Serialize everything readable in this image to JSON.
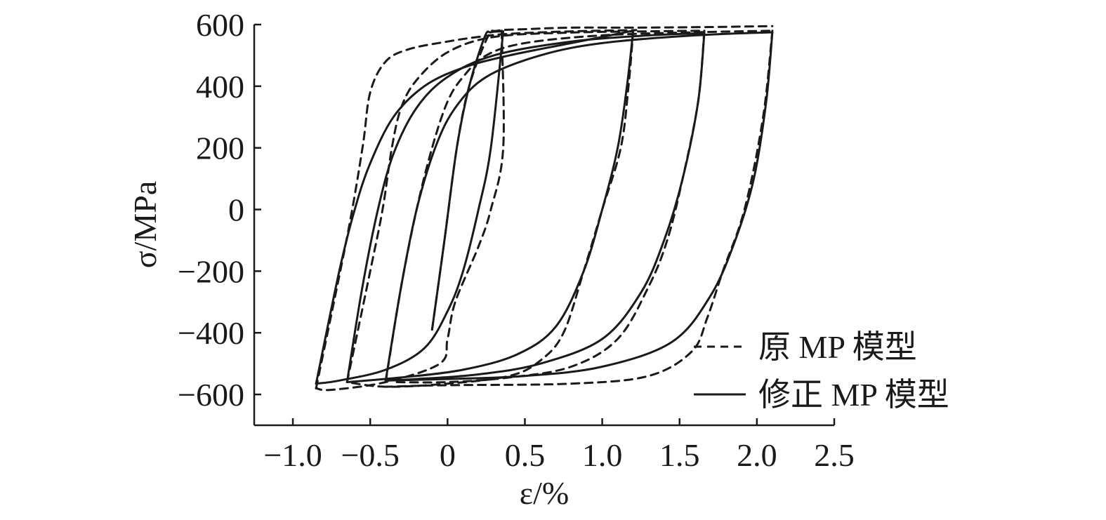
{
  "chart_data": {
    "type": "line",
    "xlabel": "ε/%",
    "ylabel": "σ/MPa",
    "xlim": [
      -1.25,
      2.5
    ],
    "ylim": [
      -700,
      600
    ],
    "xticks": [
      -1.0,
      -0.5,
      0,
      0.5,
      1.0,
      1.5,
      2.0,
      2.5
    ],
    "xtick_labels": [
      "−1.0",
      "−0.5",
      "0",
      "0.5",
      "1.0",
      "1.5",
      "2.0",
      "2.5"
    ],
    "yticks": [
      600,
      400,
      200,
      0,
      -200,
      -400,
      -600
    ],
    "ytick_labels": [
      "600",
      "400",
      "200",
      "0",
      "−200",
      "−400",
      "−600"
    ],
    "grid": false,
    "legend_position": "bottom-right",
    "series": [
      {
        "name": "原 MP 模型",
        "style": "dashed",
        "color": "#1a1a1a",
        "segments": [
          [
            [
              -0.1,
              -390
            ],
            [
              -0.02,
              -100
            ],
            [
              0.06,
              200
            ],
            [
              0.14,
              400
            ],
            [
              0.26,
              560
            ],
            [
              0.32,
              580
            ],
            [
              0.5,
              585
            ],
            [
              0.8,
              590
            ],
            [
              1.2,
              590
            ],
            [
              1.7,
              592
            ],
            [
              2.1,
              595
            ]
          ],
          [
            [
              0.35,
              580
            ],
            [
              0.36,
              200
            ],
            [
              0.28,
              0
            ],
            [
              0.2,
              -120
            ],
            [
              0.05,
              -300
            ],
            [
              0.0,
              -420
            ],
            [
              -0.05,
              -500
            ],
            [
              -0.4,
              -560
            ],
            [
              -0.75,
              -585
            ],
            [
              -0.85,
              -580
            ]
          ],
          [
            [
              -0.85,
              -580
            ],
            [
              -0.65,
              -90
            ],
            [
              -0.55,
              200
            ],
            [
              -0.5,
              380
            ],
            [
              -0.4,
              480
            ],
            [
              -0.25,
              520
            ],
            [
              0.0,
              545
            ],
            [
              0.2,
              560
            ],
            [
              0.4,
              570
            ],
            [
              0.8,
              578
            ],
            [
              1.22,
              582
            ]
          ],
          [
            [
              1.2,
              580
            ],
            [
              1.17,
              400
            ],
            [
              1.12,
              200
            ],
            [
              1.0,
              0
            ],
            [
              0.88,
              -200
            ],
            [
              0.75,
              -400
            ],
            [
              0.6,
              -490
            ],
            [
              0.4,
              -540
            ],
            [
              0.0,
              -565
            ],
            [
              -0.4,
              -575
            ],
            [
              -0.65,
              -560
            ]
          ],
          [
            [
              -0.65,
              -560
            ],
            [
              -0.5,
              -200
            ],
            [
              -0.42,
              0
            ],
            [
              -0.36,
              200
            ],
            [
              -0.3,
              330
            ],
            [
              -0.2,
              420
            ],
            [
              0.0,
              510
            ],
            [
              0.3,
              560
            ],
            [
              0.8,
              574
            ],
            [
              1.3,
              578
            ],
            [
              1.66,
              580
            ]
          ],
          [
            [
              1.66,
              580
            ],
            [
              1.62,
              350
            ],
            [
              1.52,
              100
            ],
            [
              1.42,
              -100
            ],
            [
              1.3,
              -250
            ],
            [
              1.1,
              -420
            ],
            [
              0.8,
              -510
            ],
            [
              0.4,
              -545
            ],
            [
              0.0,
              -560
            ],
            [
              -0.35,
              -560
            ]
          ],
          [
            [
              -0.4,
              -560
            ],
            [
              -0.3,
              -250
            ],
            [
              -0.2,
              0
            ],
            [
              -0.1,
              200
            ],
            [
              0.0,
              350
            ],
            [
              0.1,
              430
            ],
            [
              0.25,
              500
            ],
            [
              0.5,
              540
            ],
            [
              1.0,
              565
            ],
            [
              1.6,
              575
            ],
            [
              2.1,
              580
            ]
          ],
          [
            [
              2.1,
              580
            ],
            [
              2.04,
              300
            ],
            [
              1.92,
              0
            ],
            [
              1.78,
              -200
            ],
            [
              1.68,
              -350
            ],
            [
              1.58,
              -460
            ],
            [
              1.3,
              -540
            ],
            [
              0.8,
              -565
            ],
            [
              0.0,
              -570
            ],
            [
              -0.4,
              -575
            ]
          ]
        ]
      },
      {
        "name": "修正 MP 模型",
        "style": "solid",
        "color": "#1a1a1a",
        "segments": [
          [
            [
              -0.1,
              -390
            ],
            [
              -0.02,
              -100
            ],
            [
              0.06,
              200
            ],
            [
              0.14,
              400
            ],
            [
              0.24,
              560
            ],
            [
              0.28,
              575
            ],
            [
              0.36,
              578
            ]
          ],
          [
            [
              0.36,
              578
            ],
            [
              0.28,
              200
            ],
            [
              0.2,
              0
            ],
            [
              0.1,
              -200
            ],
            [
              0.0,
              -330
            ],
            [
              -0.15,
              -450
            ],
            [
              -0.4,
              -520
            ],
            [
              -0.7,
              -555
            ],
            [
              -0.85,
              -565
            ]
          ],
          [
            [
              -0.85,
              -565
            ],
            [
              -0.7,
              -200
            ],
            [
              -0.6,
              0
            ],
            [
              -0.5,
              150
            ],
            [
              -0.35,
              300
            ],
            [
              -0.15,
              400
            ],
            [
              0.1,
              460
            ],
            [
              0.4,
              500
            ],
            [
              0.8,
              540
            ],
            [
              1.2,
              580
            ]
          ],
          [
            [
              1.2,
              580
            ],
            [
              1.16,
              400
            ],
            [
              1.1,
              200
            ],
            [
              1.0,
              0
            ],
            [
              0.88,
              -200
            ],
            [
              0.7,
              -380
            ],
            [
              0.45,
              -470
            ],
            [
              0.1,
              -520
            ],
            [
              -0.3,
              -545
            ],
            [
              -0.65,
              -560
            ]
          ],
          [
            [
              -0.65,
              -560
            ],
            [
              -0.55,
              -250
            ],
            [
              -0.45,
              0
            ],
            [
              -0.35,
              180
            ],
            [
              -0.2,
              330
            ],
            [
              0.0,
              430
            ],
            [
              0.3,
              500
            ],
            [
              0.8,
              545
            ],
            [
              1.3,
              565
            ],
            [
              1.66,
              572
            ]
          ],
          [
            [
              1.66,
              572
            ],
            [
              1.62,
              350
            ],
            [
              1.52,
              100
            ],
            [
              1.4,
              -100
            ],
            [
              1.25,
              -270
            ],
            [
              1.0,
              -420
            ],
            [
              0.6,
              -500
            ],
            [
              0.2,
              -535
            ],
            [
              -0.2,
              -550
            ],
            [
              -0.4,
              -555
            ]
          ],
          [
            [
              -0.4,
              -555
            ],
            [
              -0.3,
              -250
            ],
            [
              -0.2,
              0
            ],
            [
              -0.08,
              200
            ],
            [
              0.05,
              330
            ],
            [
              0.25,
              430
            ],
            [
              0.6,
              500
            ],
            [
              1.0,
              540
            ],
            [
              1.6,
              565
            ],
            [
              2.1,
              575
            ]
          ],
          [
            [
              2.1,
              575
            ],
            [
              2.06,
              350
            ],
            [
              1.98,
              100
            ],
            [
              1.86,
              -100
            ],
            [
              1.7,
              -280
            ],
            [
              1.45,
              -430
            ],
            [
              1.0,
              -510
            ],
            [
              0.5,
              -540
            ],
            [
              0.0,
              -550
            ],
            [
              -0.4,
              -555
            ]
          ]
        ]
      }
    ]
  }
}
